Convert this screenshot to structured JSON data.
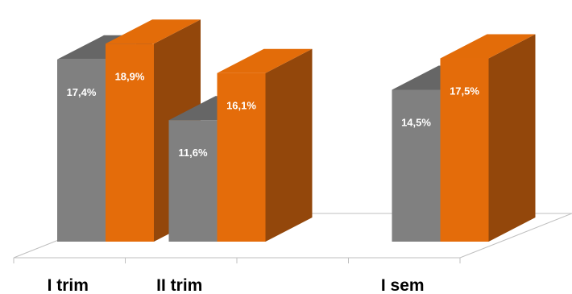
{
  "chart_data": {
    "type": "bar",
    "style": "3d-clustered-column",
    "categories": [
      "I trim",
      "II trim",
      "",
      "I sem"
    ],
    "series": [
      {
        "values": [
          17.4,
          11.6,
          null,
          14.5
        ],
        "labels": [
          "17,4%",
          "11,6%",
          "",
          "14,5%"
        ],
        "color": "#808080"
      },
      {
        "values": [
          18.9,
          16.1,
          null,
          17.5
        ],
        "labels": [
          "18,9%",
          "16,1%",
          "",
          "17,5%"
        ],
        "color": "#E46C0A"
      }
    ],
    "grid": false,
    "legend": "none",
    "colors": {
      "floor_line": "#bfbfbf",
      "gray_side": "#4d4d4d",
      "gray_top": "#666666",
      "orange_side": "#93470B",
      "orange_top": "#E36C09"
    }
  }
}
